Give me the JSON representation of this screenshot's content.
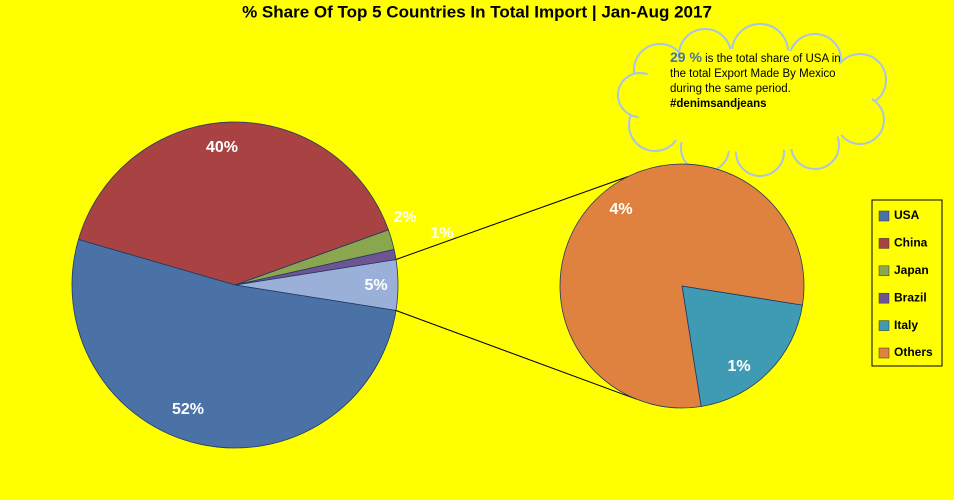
{
  "chart_data": {
    "type": "pie-of-pie",
    "title": "% Share Of Top 5 Countries In Total Import | Jan-Aug 2017",
    "categories": [
      "USA",
      "China",
      "Japan",
      "Brazil",
      "Italy",
      "Others"
    ],
    "values": [
      52,
      40,
      2,
      1,
      1,
      4
    ],
    "value_labels": [
      "52%",
      "40%",
      "2%",
      "1%",
      "1%",
      "4%"
    ],
    "colors": [
      "#4a72a6",
      "#a94343",
      "#8aa64e",
      "#6e5493",
      "#3f9bb3",
      "#e0823f"
    ],
    "secondary_count": 2,
    "other_value": 5,
    "other_label": "5%",
    "other_color": "#9ab0d8",
    "legend": "right",
    "annotation": {
      "highlight": "29 %",
      "text": "is the total share of USA in the total Export Made By Mexico during the same period.",
      "tag": "#denimsandjeans"
    }
  }
}
